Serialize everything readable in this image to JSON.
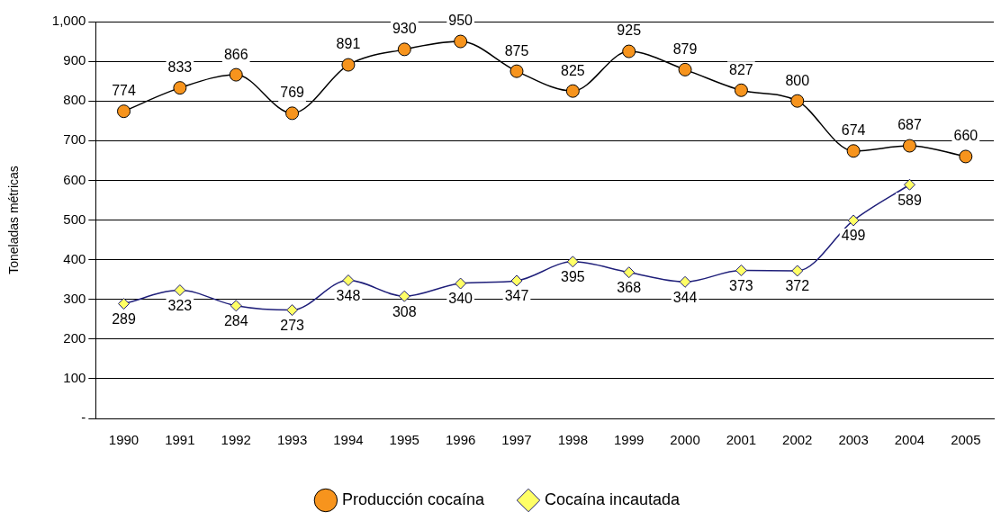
{
  "chart_data": {
    "type": "line",
    "ylabel": "Toneladas métricas",
    "categories": [
      "1990",
      "1991",
      "1992",
      "1993",
      "1994",
      "1995",
      "1996",
      "1997",
      "1998",
      "1999",
      "2000",
      "2001",
      "2002",
      "2003",
      "2004",
      "2005"
    ],
    "series": [
      {
        "name": "Producción cocaína",
        "color": "#f7941d",
        "marker": "circle",
        "values": [
          774,
          833,
          866,
          769,
          891,
          930,
          950,
          875,
          825,
          925,
          879,
          827,
          800,
          674,
          687,
          660
        ]
      },
      {
        "name": "Cocaína incautada",
        "color": "#ffff66",
        "marker": "diamond",
        "values": [
          289,
          323,
          284,
          273,
          348,
          308,
          340,
          347,
          395,
          368,
          344,
          373,
          372,
          499,
          589,
          null
        ]
      }
    ],
    "ylim": [
      0,
      1000
    ],
    "yticks": [
      {
        "value": 0,
        "label": "-"
      },
      100,
      200,
      300,
      400,
      500,
      600,
      700,
      800,
      900,
      {
        "value": 1000,
        "label": "1,000"
      }
    ],
    "grid": "y",
    "legend": "bottom",
    "data_labels": true,
    "line_style": "solid"
  }
}
